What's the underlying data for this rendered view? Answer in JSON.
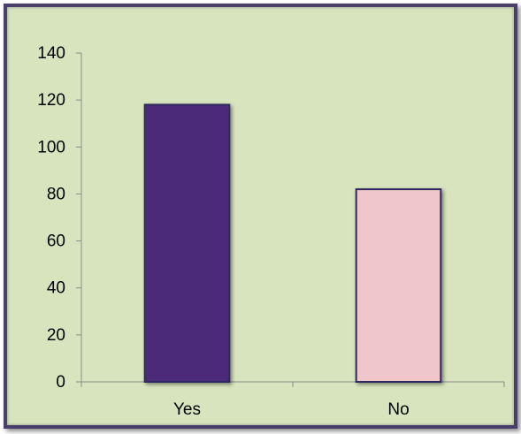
{
  "chart_data": {
    "type": "bar",
    "categories": [
      "Yes",
      "No"
    ],
    "values": [
      118,
      82
    ],
    "title": "",
    "xlabel": "",
    "ylabel": "",
    "ylim": [
      0,
      140
    ],
    "yticks": [
      "0",
      "20",
      "40",
      "60",
      "80",
      "100",
      "120",
      "140"
    ],
    "grid": false,
    "legend": "none",
    "bar_colors": [
      "#4b2a7a",
      "#efc6c9"
    ],
    "bar_outline": "#2e2a5e",
    "background": "#d7e4bd",
    "frame_color": "#4a3f6b"
  }
}
